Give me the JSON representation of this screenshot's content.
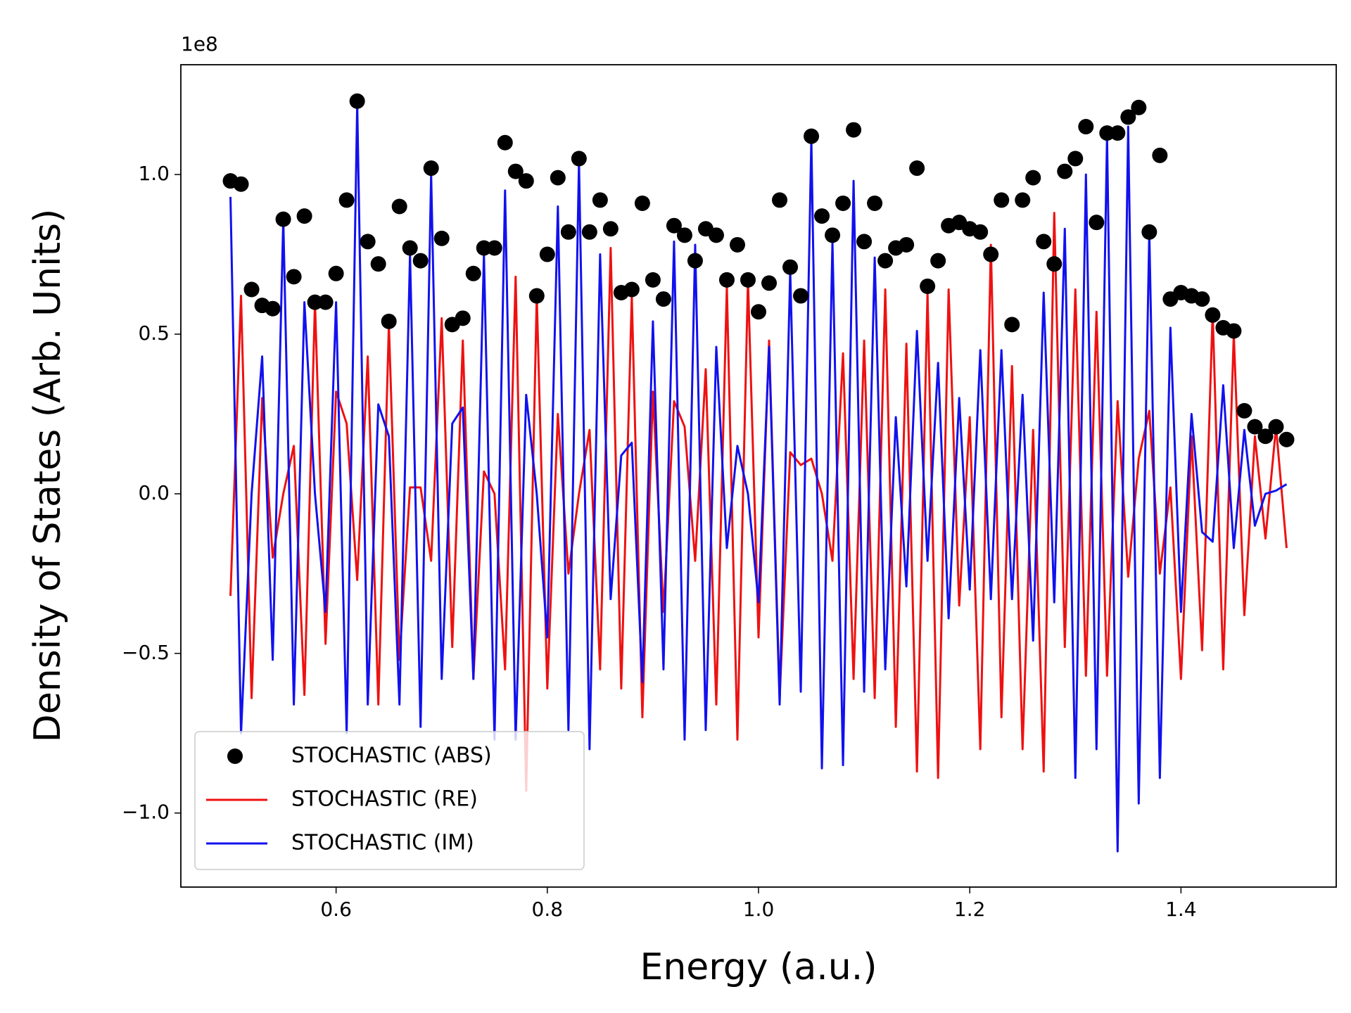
{
  "chart_data": {
    "type": "line_scatter",
    "xlabel": "Energy (a.u.)",
    "ylabel": "Density of States (Arb. Units)",
    "y_offset_label": "1e8",
    "xlim": [
      0.453,
      1.547
    ],
    "ylim": [
      -1.232,
      1.344
    ],
    "xticks": [
      0.6,
      0.8,
      {
        "value": 1,
        "label": "1.0"
      },
      1.2,
      1.4
    ],
    "yticks": [
      {
        "value": -1,
        "label": "−1.0"
      },
      {
        "value": -0.5,
        "label": "−0.5"
      },
      {
        "value": 0,
        "label": "0.0"
      },
      0.5,
      {
        "value": 1,
        "label": "1.0"
      }
    ],
    "legend": "lower left",
    "x": [
      0.5,
      0.51,
      0.52,
      0.53,
      0.54,
      0.55,
      0.56,
      0.57,
      0.58,
      0.59,
      0.6,
      0.61,
      0.62,
      0.63,
      0.64,
      0.65,
      0.66,
      0.67,
      0.68,
      0.69,
      0.7,
      0.71,
      0.72,
      0.73,
      0.74,
      0.75,
      0.76,
      0.77,
      0.78,
      0.79,
      0.8,
      0.81,
      0.82,
      0.83,
      0.84,
      0.85,
      0.86,
      0.87,
      0.88,
      0.89,
      0.9,
      0.91,
      0.92,
      0.93,
      0.94,
      0.95,
      0.96,
      0.97,
      0.98,
      0.99,
      1,
      1.01,
      1.02,
      1.03,
      1.04,
      1.05,
      1.06,
      1.07,
      1.08,
      1.09,
      1.1,
      1.11,
      1.12,
      1.13,
      1.14,
      1.15,
      1.16,
      1.17,
      1.18,
      1.19,
      1.2,
      1.21,
      1.22,
      1.23,
      1.24,
      1.25,
      1.26,
      1.27,
      1.28,
      1.29,
      1.3,
      1.31,
      1.32,
      1.33,
      1.34,
      1.35,
      1.36,
      1.37,
      1.38,
      1.39,
      1.4,
      1.41,
      1.42,
      1.43,
      1.44,
      1.45,
      1.46,
      1.47,
      1.48,
      1.49,
      1.5
    ],
    "series": [
      {
        "name": "STOCHASTIC (ABS)",
        "mode": "markers",
        "color": "#000000",
        "values": [
          0.98,
          0.97,
          0.64,
          0.59,
          0.58,
          0.86,
          0.68,
          0.87,
          0.6,
          0.6,
          0.69,
          0.92,
          1.23,
          0.79,
          0.72,
          0.54,
          0.9,
          0.77,
          0.73,
          1.02,
          0.8,
          0.53,
          0.55,
          0.69,
          0.77,
          0.77,
          1.1,
          1.01,
          0.98,
          0.62,
          0.75,
          0.99,
          0.82,
          1.05,
          0.82,
          0.92,
          0.83,
          0.63,
          0.64,
          0.91,
          0.67,
          0.61,
          0.84,
          0.81,
          0.73,
          0.83,
          0.81,
          0.67,
          0.78,
          0.67,
          0.57,
          0.66,
          0.92,
          0.71,
          0.62,
          1.12,
          0.87,
          0.81,
          0.91,
          1.14,
          0.79,
          0.91,
          0.73,
          0.77,
          0.78,
          1.02,
          0.65,
          0.73,
          0.84,
          0.85,
          0.83,
          0.82,
          0.75,
          0.92,
          0.53,
          0.92,
          0.99,
          0.79,
          0.72,
          1.01,
          1.05,
          1.15,
          0.85,
          1.13,
          1.13,
          1.18,
          1.21,
          0.82,
          1.06,
          0.61,
          0.63,
          0.62,
          0.61,
          0.56,
          0.52,
          0.51,
          0.26,
          0.21,
          0.18,
          0.21,
          0.17
        ]
      },
      {
        "name": "STOCHASTIC (RE)",
        "mode": "lines",
        "color": "#ee1111",
        "values": [
          -0.32,
          0.62,
          -0.64,
          0.3,
          -0.2,
          0,
          0.15,
          -0.63,
          0.6,
          -0.47,
          0.32,
          0.22,
          -0.27,
          0.43,
          -0.66,
          0.53,
          -0.52,
          0.02,
          0.02,
          -0.21,
          0.55,
          -0.48,
          0.48,
          -0.58,
          0.07,
          0,
          -0.55,
          0.68,
          -0.93,
          0.62,
          -0.61,
          0.25,
          -0.25,
          0,
          0.2,
          -0.55,
          0.77,
          -0.61,
          0.62,
          -0.7,
          0.32,
          -0.37,
          0.29,
          0.21,
          -0.21,
          0.39,
          -0.66,
          0.65,
          -0.77,
          0.67,
          -0.45,
          0.48,
          -0.64,
          0.13,
          0.09,
          0.11,
          0,
          -0.21,
          0.44,
          -0.58,
          0.48,
          -0.64,
          0.64,
          -0.73,
          0.47,
          -0.87,
          0.63,
          -0.89,
          0.64,
          -0.35,
          0.24,
          -0.8,
          0.78,
          -0.7,
          0.4,
          -0.8,
          0.2,
          -0.87,
          0.88,
          -0.48,
          0.64,
          -0.57,
          0.57,
          -0.57,
          0.29,
          -0.26,
          0.11,
          0.26,
          -0.25,
          0.02,
          -0.58,
          0.18,
          -0.49,
          0.57,
          -0.55,
          0.5,
          -0.38,
          0.18,
          -0.14,
          0.21,
          -0.17
        ]
      },
      {
        "name": "STOCHASTIC (IM)",
        "mode": "lines",
        "color": "#1111ee",
        "values": [
          0.93,
          -0.75,
          0,
          0.43,
          -0.52,
          0.86,
          -0.66,
          0.6,
          0,
          -0.37,
          0.6,
          -0.75,
          1.22,
          -0.66,
          0.28,
          0.18,
          -0.66,
          0.75,
          -0.73,
          1,
          -0.58,
          0.22,
          0.27,
          -0.58,
          0.75,
          -0.77,
          0.95,
          -0.77,
          0.31,
          0,
          -0.45,
          0.9,
          -0.74,
          1.04,
          -0.8,
          0.75,
          -0.33,
          0.12,
          0.16,
          -0.59,
          0.54,
          -0.55,
          0.79,
          -0.77,
          0.78,
          -0.74,
          0.46,
          -0.17,
          0.15,
          0,
          -0.34,
          0.46,
          -0.66,
          0.7,
          -0.62,
          1.11,
          -0.86,
          0.79,
          -0.85,
          0.98,
          -0.62,
          0.74,
          -0.55,
          0.24,
          -0.29,
          0.51,
          -0.21,
          0.41,
          -0.39,
          0.3,
          -0.3,
          0.45,
          -0.33,
          0.45,
          -0.33,
          0.31,
          -0.46,
          0.63,
          -0.34,
          0.83,
          -0.89,
          1,
          -0.8,
          1.12,
          -1.12,
          1.15,
          -0.97,
          0.82,
          -0.89,
          0.52,
          -0.37,
          0.25,
          -0.12,
          -0.15,
          0.34,
          -0.17,
          0.2,
          -0.1,
          0,
          0.01,
          0.03
        ]
      }
    ]
  }
}
